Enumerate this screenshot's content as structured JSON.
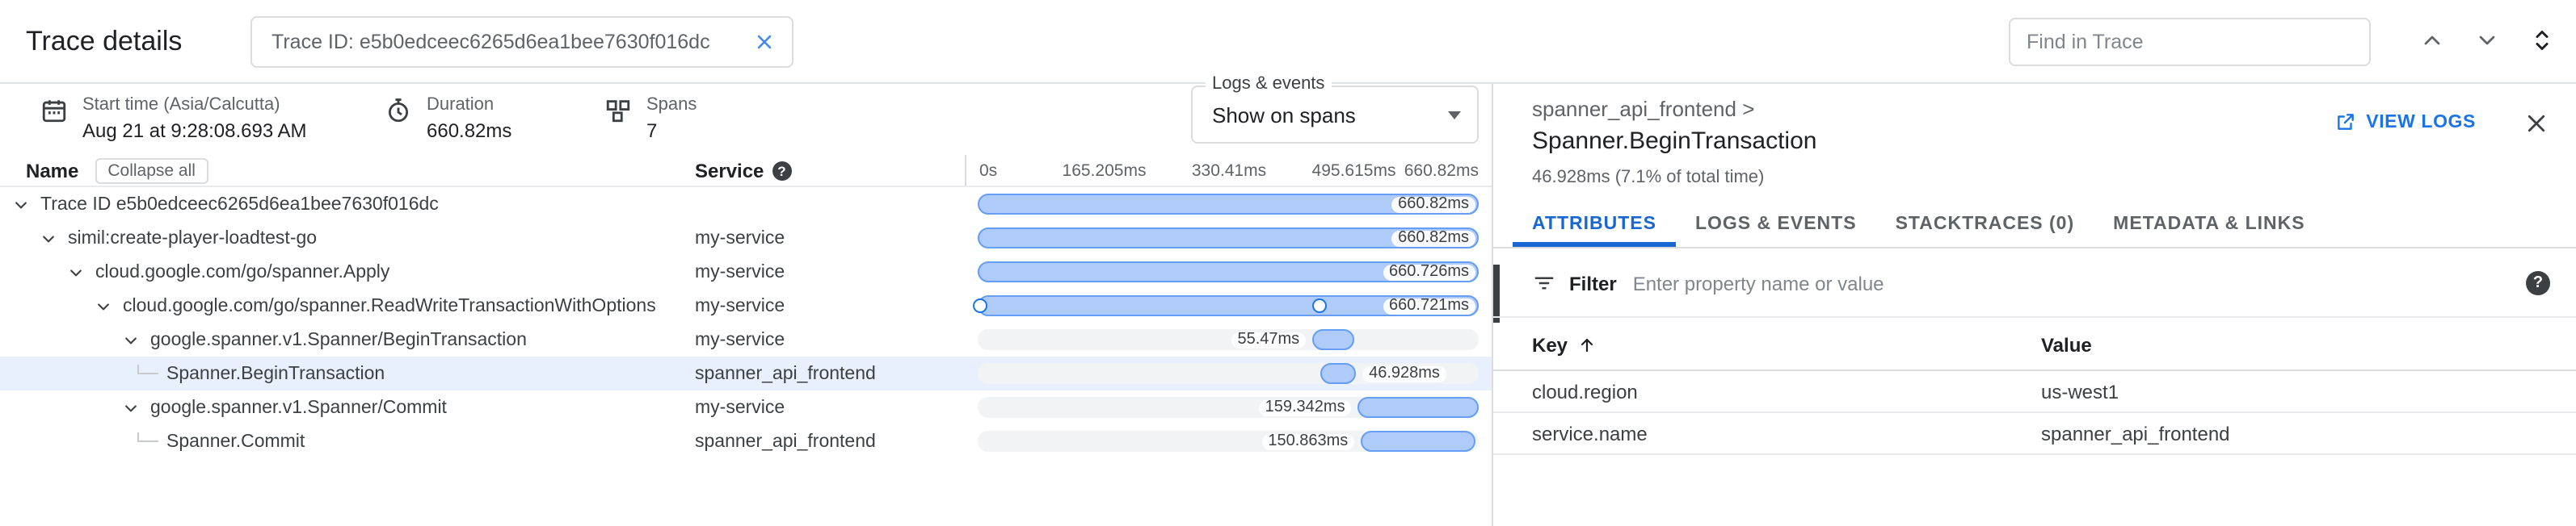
{
  "colors": {
    "accent": "#1a73e8",
    "bar_fill": "#aecbfa",
    "bar_border": "#669df6",
    "selected_row": "#e8f0fe",
    "track": "#f1f3f4"
  },
  "header": {
    "title": "Trace details",
    "trace_id_value": "Trace ID: e5b0edceec6265d6ea1bee7630f016dc",
    "find_placeholder": "Find in Trace"
  },
  "summary": {
    "items": [
      {
        "label": "Start time (Asia/Calcutta)",
        "value": "Aug 21 at 9:28:08.693 AM"
      },
      {
        "label": "Duration",
        "value": "660.82ms"
      },
      {
        "label": "Spans",
        "value": "7"
      }
    ],
    "logs_events": {
      "legend": "Logs & events",
      "selected": "Show on spans"
    }
  },
  "grid": {
    "name_header": "Name",
    "collapse_all_label": "Collapse all",
    "service_header": "Service",
    "ticks": [
      "0s",
      "165.205ms",
      "330.41ms",
      "495.615ms",
      "660.82ms"
    ],
    "rows": [
      {
        "name": "Trace ID e5b0edceec6265d6ea1bee7630f016dc",
        "service": "",
        "indent": 0,
        "expandable": true,
        "duration": "660.82ms",
        "bar": {
          "start": 0,
          "width": 100
        },
        "label_pos": "inside",
        "markers": []
      },
      {
        "name": "simil:create-player-loadtest-go",
        "service": "my-service",
        "indent": 1,
        "expandable": true,
        "duration": "660.82ms",
        "bar": {
          "start": 0,
          "width": 100
        },
        "label_pos": "inside",
        "markers": []
      },
      {
        "name": "cloud.google.com/go/spanner.Apply",
        "service": "my-service",
        "indent": 2,
        "expandable": true,
        "duration": "660.726ms",
        "bar": {
          "start": 0,
          "width": 100
        },
        "label_pos": "inside",
        "markers": []
      },
      {
        "name": "cloud.google.com/go/spanner.ReadWriteTransactionWithOptions",
        "service": "my-service",
        "indent": 3,
        "expandable": true,
        "duration": "660.721ms",
        "bar": {
          "start": 0,
          "width": 100
        },
        "label_pos": "inside",
        "markers": [
          0.6,
          68.4
        ]
      },
      {
        "name": "google.spanner.v1.Spanner/BeginTransaction",
        "service": "my-service",
        "indent": 4,
        "expandable": true,
        "duration": "55.47ms",
        "bar": {
          "start": 66.8,
          "width": 8.4
        },
        "label_pos": "left",
        "markers": []
      },
      {
        "name": "Spanner.BeginTransaction",
        "service": "spanner_api_frontend",
        "indent": 5,
        "expandable": false,
        "duration": "46.928ms",
        "bar": {
          "start": 68.4,
          "width": 7.1
        },
        "label_pos": "right",
        "selected": true,
        "markers": []
      },
      {
        "name": "google.spanner.v1.Spanner/Commit",
        "service": "my-service",
        "indent": 4,
        "expandable": true,
        "duration": "159.342ms",
        "bar": {
          "start": 75.9,
          "width": 24.1
        },
        "label_pos": "left",
        "markers": []
      },
      {
        "name": "Spanner.Commit",
        "service": "spanner_api_frontend",
        "indent": 5,
        "expandable": false,
        "duration": "150.863ms",
        "bar": {
          "start": 76.5,
          "width": 22.8
        },
        "label_pos": "left",
        "markers": []
      }
    ]
  },
  "details": {
    "breadcrumb": "spanner_api_frontend >",
    "view_logs_label": "VIEW LOGS",
    "title": "Spanner.BeginTransaction",
    "subtitle": "46.928ms (7.1% of total time)",
    "tabs": [
      {
        "label": "ATTRIBUTES",
        "active": true
      },
      {
        "label": "LOGS & EVENTS",
        "active": false
      },
      {
        "label": "STACKTRACES (0)",
        "active": false
      },
      {
        "label": "METADATA & LINKS",
        "active": false
      }
    ],
    "filter": {
      "label": "Filter",
      "placeholder": "Enter property name or value"
    },
    "attributes": {
      "key_header": "Key",
      "value_header": "Value",
      "rows": [
        {
          "key": "cloud.region",
          "value": "us-west1"
        },
        {
          "key": "service.name",
          "value": "spanner_api_frontend"
        }
      ]
    }
  }
}
